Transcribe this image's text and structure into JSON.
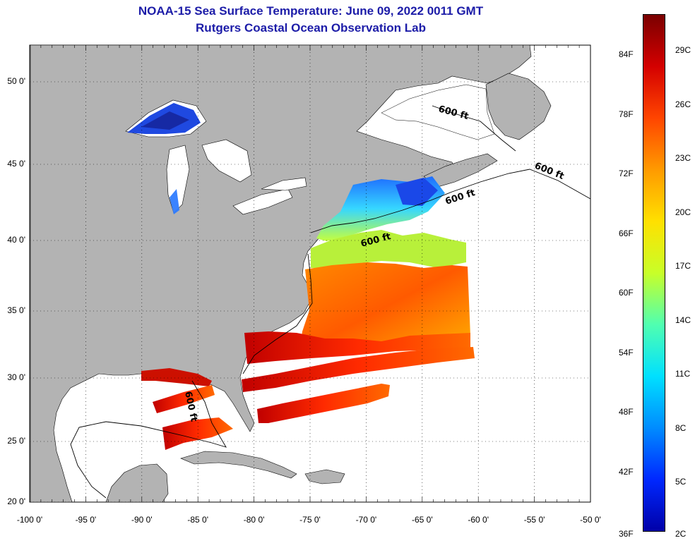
{
  "title": "NOAA-15 Sea Surface Temperature:  June 09, 2022 0011 GMT",
  "subtitle": "Rutgers Coastal Ocean Observation Lab",
  "lat_ticks": [
    {
      "label": "50 0'",
      "value": 50
    },
    {
      "label": "45 0'",
      "value": 45
    },
    {
      "label": "40 0'",
      "value": 40
    },
    {
      "label": "35 0'",
      "value": 35
    },
    {
      "label": "30 0'",
      "value": 30
    },
    {
      "label": "25 0'",
      "value": 25
    },
    {
      "label": "20 0'",
      "value": 20
    }
  ],
  "lon_ticks": [
    {
      "label": "-100 0'",
      "value": -100
    },
    {
      "label": "-95 0'",
      "value": -95
    },
    {
      "label": "-90 0'",
      "value": -90
    },
    {
      "label": "-85 0'",
      "value": -85
    },
    {
      "label": "-80 0'",
      "value": -80
    },
    {
      "label": "-75 0'",
      "value": -75
    },
    {
      "label": "-70 0'",
      "value": -70
    },
    {
      "label": "-65 0'",
      "value": -65
    },
    {
      "label": "-60 0'",
      "value": -60
    },
    {
      "label": "-55 0'",
      "value": -55
    },
    {
      "label": "-50 0'",
      "value": -50
    }
  ],
  "isobath_label": "600 ft",
  "colorbar": {
    "fahrenheit": [
      "84F",
      "78F",
      "72F",
      "66F",
      "60F",
      "54F",
      "48F",
      "42F",
      "36F"
    ],
    "celsius": [
      "29C",
      "26C",
      "23C",
      "20C",
      "17C",
      "14C",
      "11C",
      "8C",
      "5C",
      "2C"
    ],
    "colors": [
      "#7a0000",
      "#d40000",
      "#ff4500",
      "#ff9a00",
      "#ffe000",
      "#c8ff28",
      "#50ffb0",
      "#00e0ff",
      "#008cff",
      "#0028ff",
      "#0000a8"
    ]
  },
  "colors": {
    "land": "#b3b3b3",
    "water": "#ffffff",
    "title": "#1c1ca8"
  }
}
